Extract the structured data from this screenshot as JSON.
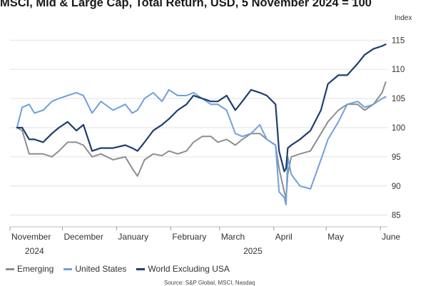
{
  "chart_data": {
    "type": "line",
    "title": "MSCI, Mid & Large Cap, Total Return, USD, 5 November 2024 = 100",
    "ylabel": "Index",
    "ylim": [
      83,
      117
    ],
    "yticks": [
      85,
      90,
      95,
      100,
      105,
      110,
      115
    ],
    "xlim": [
      "2024-11-01",
      "2025-06-05"
    ],
    "month_ticks": [
      "2024-11-01",
      "2024-12-01",
      "2025-01-01",
      "2025-02-01",
      "2025-03-01",
      "2025-04-01",
      "2025-05-01",
      "2025-06-01"
    ],
    "month_labels": [
      "November",
      "December",
      "January",
      "February",
      "March",
      "April",
      "May",
      "June"
    ],
    "year_labels": [
      {
        "text": "2024",
        "date": "2024-11-15"
      },
      {
        "text": "2025",
        "date": "2025-03-20"
      }
    ],
    "grid": true,
    "legend_position": "bottom-left",
    "source": "Source: S&P Global, MSCI, Nasdaq",
    "series": [
      {
        "name": "Emerging",
        "color": "#8e8e8e",
        "x": [
          "2024-11-05",
          "2024-11-08",
          "2024-11-12",
          "2024-11-15",
          "2024-11-20",
          "2024-11-25",
          "2024-11-29",
          "2024-12-04",
          "2024-12-09",
          "2024-12-13",
          "2024-12-18",
          "2024-12-23",
          "2024-12-30",
          "2025-01-06",
          "2025-01-10",
          "2025-01-13",
          "2025-01-17",
          "2025-01-22",
          "2025-01-27",
          "2025-01-31",
          "2025-02-05",
          "2025-02-10",
          "2025-02-14",
          "2025-02-19",
          "2025-02-24",
          "2025-02-28",
          "2025-03-05",
          "2025-03-10",
          "2025-03-14",
          "2025-03-19",
          "2025-03-24",
          "2025-03-28",
          "2025-04-02",
          "2025-04-04",
          "2025-04-07",
          "2025-04-08",
          "2025-04-09",
          "2025-04-11",
          "2025-04-16",
          "2025-04-22",
          "2025-04-28",
          "2025-05-02",
          "2025-05-08",
          "2025-05-13",
          "2025-05-19",
          "2025-05-23",
          "2025-05-28",
          "2025-06-02",
          "2025-06-04"
        ],
        "values": [
          100,
          99.5,
          95.5,
          95.5,
          95.5,
          95,
          96,
          97.5,
          97.5,
          97,
          95,
          95.5,
          94.5,
          95,
          93,
          91.7,
          94.5,
          95.5,
          95.2,
          96,
          95.5,
          96,
          97.5,
          98.5,
          98.5,
          97.5,
          98,
          97,
          98,
          99,
          99,
          98,
          97,
          93,
          89,
          87.8,
          92,
          95,
          95.5,
          96,
          99,
          101,
          103,
          104,
          104,
          103,
          104,
          106,
          107.8
        ]
      },
      {
        "name": "United States",
        "color": "#6fa0dc",
        "x": [
          "2024-11-05",
          "2024-11-08",
          "2024-11-12",
          "2024-11-15",
          "2024-11-20",
          "2024-11-25",
          "2024-11-29",
          "2024-12-04",
          "2024-12-09",
          "2024-12-13",
          "2024-12-18",
          "2024-12-23",
          "2024-12-30",
          "2025-01-06",
          "2025-01-10",
          "2025-01-13",
          "2025-01-17",
          "2025-01-22",
          "2025-01-27",
          "2025-01-31",
          "2025-02-05",
          "2025-02-10",
          "2025-02-14",
          "2025-02-19",
          "2025-02-24",
          "2025-02-28",
          "2025-03-05",
          "2025-03-10",
          "2025-03-14",
          "2025-03-19",
          "2025-03-24",
          "2025-03-28",
          "2025-04-02",
          "2025-04-04",
          "2025-04-07",
          "2025-04-08",
          "2025-04-09",
          "2025-04-11",
          "2025-04-16",
          "2025-04-22",
          "2025-04-28",
          "2025-05-02",
          "2025-05-08",
          "2025-05-13",
          "2025-05-19",
          "2025-05-23",
          "2025-05-28",
          "2025-06-02",
          "2025-06-04"
        ],
        "values": [
          100,
          103.5,
          104,
          102.5,
          103,
          104.5,
          105,
          105.5,
          106,
          105.5,
          102.5,
          104.5,
          103,
          104,
          102.5,
          103,
          105,
          106,
          104.5,
          106.5,
          105.5,
          105.5,
          106,
          105,
          104,
          104,
          103,
          99,
          98.5,
          99,
          100.5,
          98,
          97,
          89,
          88,
          86.8,
          95,
          92,
          90,
          89.5,
          94.5,
          98,
          101,
          104,
          104.5,
          103.5,
          104,
          105,
          105.3
        ]
      },
      {
        "name": "World Excluding USA",
        "color": "#1f3e6e",
        "x": [
          "2024-11-05",
          "2024-11-08",
          "2024-11-12",
          "2024-11-15",
          "2024-11-20",
          "2024-11-25",
          "2024-11-29",
          "2024-12-04",
          "2024-12-09",
          "2024-12-13",
          "2024-12-18",
          "2024-12-23",
          "2024-12-30",
          "2025-01-06",
          "2025-01-10",
          "2025-01-13",
          "2025-01-17",
          "2025-01-22",
          "2025-01-27",
          "2025-01-31",
          "2025-02-05",
          "2025-02-10",
          "2025-02-14",
          "2025-02-19",
          "2025-02-24",
          "2025-02-28",
          "2025-03-05",
          "2025-03-10",
          "2025-03-14",
          "2025-03-19",
          "2025-03-24",
          "2025-03-28",
          "2025-04-02",
          "2025-04-04",
          "2025-04-07",
          "2025-04-08",
          "2025-04-09",
          "2025-04-11",
          "2025-04-16",
          "2025-04-22",
          "2025-04-28",
          "2025-05-02",
          "2025-05-08",
          "2025-05-13",
          "2025-05-19",
          "2025-05-23",
          "2025-05-28",
          "2025-06-02",
          "2025-06-04"
        ],
        "values": [
          100,
          100,
          98,
          98,
          97.5,
          99,
          100,
          101,
          99.5,
          100.5,
          96,
          96.5,
          96.5,
          97,
          96.5,
          96,
          97.5,
          99.5,
          100.5,
          101.5,
          103,
          104,
          105.5,
          105,
          104.5,
          104.5,
          105.5,
          103,
          104.5,
          106.5,
          106,
          105.5,
          104,
          96,
          92.5,
          93,
          96.5,
          97,
          98,
          99.5,
          103,
          107.5,
          109,
          109,
          111,
          112.5,
          113.5,
          114,
          114.3
        ]
      }
    ]
  }
}
